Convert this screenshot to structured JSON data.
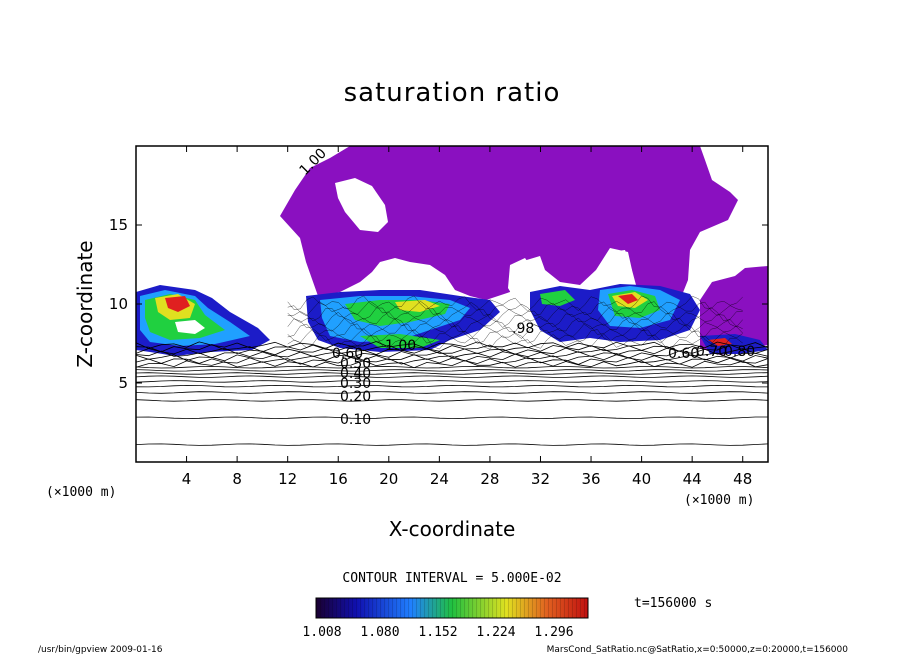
{
  "chart_data": {
    "type": "heatmap",
    "title": "saturation ratio",
    "xlabel": "X-coordinate",
    "ylabel": "Z-coordinate",
    "x_unit": "(×1000 m)",
    "y_unit": "(×1000 m)",
    "xlim": [
      0,
      50
    ],
    "ylim": [
      0,
      20
    ],
    "x_ticks": [
      "4",
      "8",
      "12",
      "16",
      "20",
      "24",
      "28",
      "32",
      "36",
      "40",
      "44",
      "48"
    ],
    "y_ticks": [
      "5",
      "10",
      "15"
    ],
    "contour_interval_text": "CONTOUR INTERVAL = 5.000E-02",
    "contour_labels": [
      "1.00",
      "0.10",
      "0.20",
      "0.30",
      "0.40",
      "0.50",
      "0.60",
      "1.00",
      ".98",
      "0.60",
      "0.70",
      "0.80"
    ],
    "colorbar_ticks": [
      "1.008",
      "1.080",
      "1.152",
      "1.224",
      "1.296"
    ],
    "colorbar_range": [
      1.008,
      1.296
    ],
    "time_label": "t=156000 s",
    "colors": {
      "saturated": "#8a10c0",
      "low": "#1c1cc8",
      "mid": "#20d040",
      "high": "#e02020"
    }
  },
  "footer": {
    "left": "/usr/bin/gpview   2009-01-16",
    "right": "MarsCond_SatRatio.nc@SatRatio,x=0:50000,z=0:20000,t=156000"
  }
}
